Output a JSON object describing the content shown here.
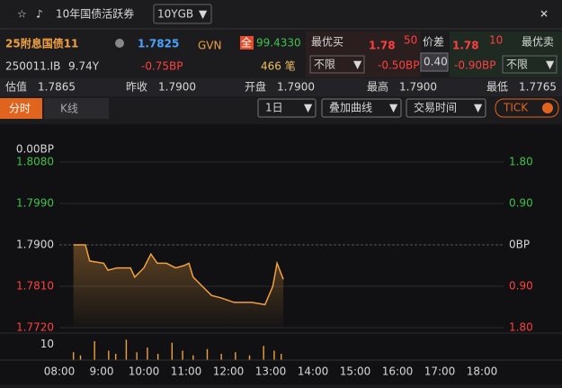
{
  "header": {
    "title": "10年国债活跃券",
    "selector": "10YGB"
  },
  "quote": {
    "name": "25附息国债11",
    "price": "1.7825",
    "source": "GVN",
    "full_tag": "全",
    "full_price": "99.4330",
    "code": "250011.IB",
    "term": "9.74Y",
    "change": "-0.75BP",
    "trades": "466 笔"
  },
  "best_bid": {
    "label": "最优买",
    "price": "1.78",
    "sub": "50",
    "filter": "不限",
    "change": "-0.50BP"
  },
  "spread": {
    "label": "价差",
    "value": "0.40"
  },
  "best_ask": {
    "label": "最优卖",
    "price": "1.78",
    "sub": "10",
    "filter": "不限",
    "change": "-0.90BP"
  },
  "stats": [
    {
      "label": "估值",
      "value": "1.7865"
    },
    {
      "label": "昨收",
      "value": "1.7900"
    },
    {
      "label": "开盘",
      "value": "1.7900"
    },
    {
      "label": "最高",
      "value": "1.7900"
    },
    {
      "label": "最低",
      "value": "1.7765"
    }
  ],
  "tabs": [
    "分时",
    "K线"
  ],
  "controls": [
    "1日",
    "叠加曲线",
    "交易时间",
    "TICK"
  ],
  "chart": {
    "type": "line",
    "top_label": "0.00BP",
    "color": "#f0a040",
    "base": 1.79,
    "x": [
      "08:20",
      "08:37",
      "08:43",
      "09:03",
      "09:09",
      "09:22",
      "09:41",
      "09:47",
      "10:00",
      "10:10",
      "10:19",
      "10:32",
      "10:45",
      "10:57",
      "11:04",
      "11:10",
      "11:23",
      "11:36",
      "11:49",
      "12:08",
      "12:33",
      "12:52",
      "13:03",
      "13:09",
      "13:18"
    ],
    "values": [
      1.79,
      1.79,
      1.7865,
      1.786,
      1.7845,
      1.785,
      1.785,
      1.783,
      1.785,
      1.788,
      1.786,
      1.786,
      1.785,
      1.7855,
      1.786,
      1.783,
      1.781,
      1.779,
      1.7785,
      1.7775,
      1.7775,
      1.777,
      1.781,
      1.786,
      1.7825
    ],
    "xlim": [
      "08:00",
      "18:00"
    ],
    "xticks": [
      "08:00",
      "9:00",
      "10:00",
      "11:00",
      "12:00",
      "13:00",
      "14:00",
      "15:00",
      "16:00",
      "17:00",
      "18:00"
    ],
    "ylim": [
      1.772,
      1.808
    ],
    "yticks": [
      {
        "value": 1.808,
        "label": "1.8080"
      },
      {
        "value": 1.799,
        "label": "1.7990"
      },
      {
        "value": 1.79,
        "label": "1.7900"
      },
      {
        "value": 1.781,
        "label": "1.7810"
      },
      {
        "value": 1.772,
        "label": "1.7720"
      }
    ],
    "y2lim": [
      -1.8,
      1.8
    ],
    "y2ticks": [
      {
        "value": 1.8,
        "label": "1.80"
      },
      {
        "value": 0.9,
        "label": "0.90"
      },
      {
        "value": 0,
        "label": "0BP"
      },
      {
        "value": -0.9,
        "label": "0.90"
      },
      {
        "value": -1.8,
        "label": "1.80"
      }
    ],
    "volume": {
      "x": [
        "08:20",
        "08:30",
        "08:50",
        "09:10",
        "09:20",
        "09:35",
        "09:50",
        "10:05",
        "10:20",
        "10:40",
        "10:55",
        "11:10",
        "11:30",
        "11:50",
        "12:10",
        "12:30",
        "12:50",
        "13:05",
        "13:15"
      ],
      "values": [
        5,
        3,
        12,
        6,
        4,
        13,
        5,
        8,
        4,
        11,
        6,
        3,
        7,
        4,
        5,
        3,
        9,
        6,
        4
      ],
      "ylim": [
        0,
        16
      ],
      "yticks": [
        10
      ]
    }
  }
}
